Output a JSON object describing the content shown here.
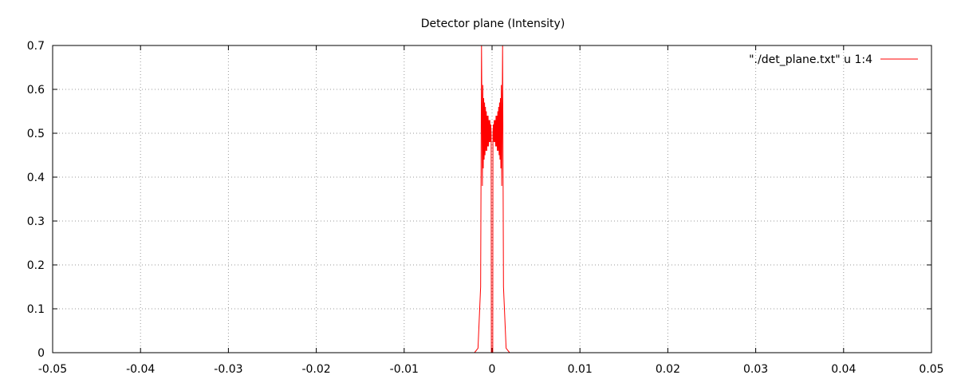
{
  "chart_data": {
    "type": "line",
    "title": "Detector plane (Intensity)",
    "xlabel": "",
    "ylabel": "",
    "xlim": [
      -0.05,
      0.05
    ],
    "ylim": [
      0,
      0.7
    ],
    "x_ticks": [
      -0.05,
      -0.04,
      -0.03,
      -0.02,
      -0.01,
      0,
      0.01,
      0.02,
      0.03,
      0.04,
      0.05
    ],
    "x_tick_labels": [
      "-0.05",
      "-0.04",
      "-0.03",
      "-0.02",
      "-0.01",
      "0",
      "0.01",
      "0.02",
      "0.03",
      "0.04",
      "0.05"
    ],
    "y_ticks": [
      0,
      0.1,
      0.2,
      0.3,
      0.4,
      0.5,
      0.6,
      0.7
    ],
    "y_tick_labels": [
      "0",
      "0.1",
      "0.2",
      "0.3",
      "0.4",
      "0.5",
      "0.6",
      "0.7"
    ],
    "grid": true,
    "legend_position": "top-right",
    "series": [
      {
        "name": "\"./det_plane.txt\" u 1:4",
        "color": "#ff0000",
        "x": [
          -0.05,
          -0.002,
          -0.0016,
          -0.0013,
          -0.0012,
          -0.0011,
          -0.00105,
          -0.001,
          -0.00095,
          -0.0009,
          -0.00085,
          -0.0008,
          -0.00075,
          -0.0007,
          -0.00065,
          -0.0006,
          -0.00055,
          -0.0005,
          -0.00045,
          -0.0004,
          -0.00035,
          -0.0003,
          -0.00025,
          -0.0002,
          -0.00015,
          -0.0001,
          -8e-05,
          -5e-05,
          0,
          5e-05,
          8e-05,
          0.0001,
          0.00015,
          0.0002,
          0.00025,
          0.0003,
          0.00035,
          0.0004,
          0.00045,
          0.0005,
          0.00055,
          0.0006,
          0.00065,
          0.0007,
          0.00075,
          0.0008,
          0.00085,
          0.0009,
          0.00095,
          0.001,
          0.00105,
          0.0011,
          0.0012,
          0.0013,
          0.0016,
          0.002,
          0.05
        ],
        "y": [
          0,
          0,
          0.01,
          0.15,
          0.7,
          0.38,
          0.61,
          0.42,
          0.58,
          0.44,
          0.57,
          0.45,
          0.56,
          0.46,
          0.55,
          0.46,
          0.54,
          0.47,
          0.54,
          0.47,
          0.53,
          0.48,
          0.53,
          0.48,
          0.52,
          0.5,
          0,
          0,
          0,
          0,
          0,
          0.5,
          0.52,
          0.48,
          0.53,
          0.48,
          0.53,
          0.47,
          0.54,
          0.47,
          0.54,
          0.46,
          0.55,
          0.46,
          0.56,
          0.45,
          0.57,
          0.44,
          0.58,
          0.42,
          0.61,
          0.38,
          0.7,
          0.15,
          0.01,
          0,
          0
        ]
      }
    ]
  }
}
